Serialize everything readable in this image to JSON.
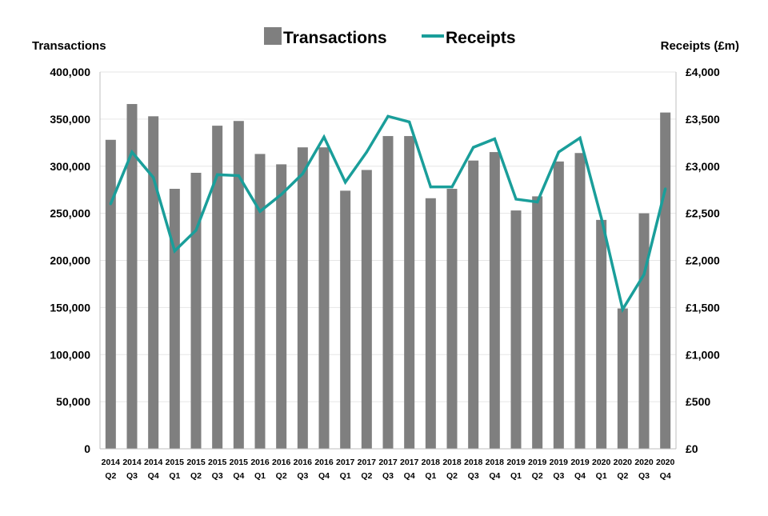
{
  "chart_data": {
    "type": "bar",
    "categories": [
      [
        "2014",
        "Q2"
      ],
      [
        "2014",
        "Q3"
      ],
      [
        "2014",
        "Q4"
      ],
      [
        "2015",
        "Q1"
      ],
      [
        "2015",
        "Q2"
      ],
      [
        "2015",
        "Q3"
      ],
      [
        "2015",
        "Q4"
      ],
      [
        "2016",
        "Q1"
      ],
      [
        "2016",
        "Q2"
      ],
      [
        "2016",
        "Q3"
      ],
      [
        "2016",
        "Q4"
      ],
      [
        "2017",
        "Q1"
      ],
      [
        "2017",
        "Q2"
      ],
      [
        "2017",
        "Q3"
      ],
      [
        "2017",
        "Q4"
      ],
      [
        "2018",
        "Q1"
      ],
      [
        "2018",
        "Q2"
      ],
      [
        "2018",
        "Q3"
      ],
      [
        "2018",
        "Q4"
      ],
      [
        "2019",
        "Q1"
      ],
      [
        "2019",
        "Q2"
      ],
      [
        "2019",
        "Q3"
      ],
      [
        "2019",
        "Q4"
      ],
      [
        "2020",
        "Q1"
      ],
      [
        "2020",
        "Q2"
      ],
      [
        "2020",
        "Q3"
      ],
      [
        "2020",
        "Q4"
      ]
    ],
    "series": [
      {
        "name": "Transactions",
        "type": "bar",
        "axis": "left",
        "color": "#7f7f7f",
        "values": [
          328000,
          366000,
          353000,
          276000,
          293000,
          343000,
          348000,
          313000,
          302000,
          320000,
          320000,
          274000,
          296000,
          332000,
          332000,
          266000,
          276000,
          306000,
          315000,
          253000,
          268000,
          305000,
          314000,
          243000,
          149000,
          250000,
          357000
        ]
      },
      {
        "name": "Receipts",
        "type": "line",
        "axis": "right",
        "color": "#1a9e9a",
        "values": [
          2600,
          3150,
          2880,
          2100,
          2320,
          2910,
          2900,
          2520,
          2700,
          2920,
          3310,
          2830,
          3150,
          3530,
          3470,
          2780,
          2780,
          3200,
          3290,
          2650,
          2620,
          3150,
          3300,
          2450,
          1480,
          1850,
          2760
        ]
      }
    ],
    "ylabel": "Transactions",
    "y2label": "Receipts (£m)",
    "ylim": [
      0,
      400000
    ],
    "y2lim": [
      0,
      4000
    ],
    "yticks": [
      "0",
      "50,000",
      "100,000",
      "150,000",
      "200,000",
      "250,000",
      "300,000",
      "350,000",
      "400,000"
    ],
    "y2ticks": [
      "£0",
      "£500",
      "£1,000",
      "£1,500",
      "£2,000",
      "£2,500",
      "£3,000",
      "£3,500",
      "£4,000"
    ],
    "grid": true,
    "legend": "top-center"
  }
}
